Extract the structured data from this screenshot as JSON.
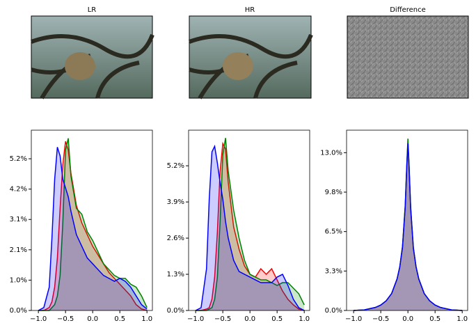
{
  "panels": [
    {
      "title": "LR"
    },
    {
      "title": "HR"
    },
    {
      "title": "Difference"
    }
  ],
  "chart_data": [
    {
      "type": "line",
      "fill": true,
      "x": [
        -1.0,
        -0.9,
        -0.8,
        -0.75,
        -0.7,
        -0.65,
        -0.6,
        -0.55,
        -0.5,
        -0.45,
        -0.4,
        -0.3,
        -0.2,
        -0.1,
        0,
        0.1,
        0.2,
        0.3,
        0.4,
        0.5,
        0.6,
        0.7,
        0.8,
        0.9,
        1.0
      ],
      "series": [
        {
          "color": "red",
          "values": [
            0,
            0,
            0.1,
            0.3,
            0.8,
            1.8,
            3.5,
            5.0,
            5.8,
            5.5,
            4.7,
            3.6,
            3.0,
            2.6,
            2.2,
            1.9,
            1.6,
            1.3,
            1.1,
            0.9,
            0.7,
            0.5,
            0.2,
            0.05,
            0
          ]
        },
        {
          "color": "green",
          "values": [
            0,
            0,
            0,
            0.1,
            0.2,
            0.5,
            1.2,
            3.0,
            5.5,
            5.9,
            4.6,
            3.5,
            3.3,
            2.7,
            2.4,
            2.0,
            1.6,
            1.4,
            1.2,
            1.1,
            1.1,
            0.9,
            0.8,
            0.5,
            0.1
          ]
        },
        {
          "color": "blue",
          "values": [
            0,
            0.1,
            0.8,
            2.5,
            4.5,
            5.6,
            5.3,
            4.5,
            4.2,
            3.9,
            3.4,
            2.6,
            2.2,
            1.8,
            1.6,
            1.4,
            1.2,
            1.1,
            1.0,
            1.1,
            1.0,
            0.8,
            0.5,
            0.2,
            0.05
          ]
        }
      ],
      "xlim": [
        -1.13,
        1.1
      ],
      "ylim": [
        0,
        6.18
      ],
      "xticks": [
        {
          "value": -1.0,
          "label": "−1.0"
        },
        {
          "value": -0.5,
          "label": "−0.5"
        },
        {
          "value": 0,
          "label": "0.0"
        },
        {
          "value": 0.5,
          "label": "0.5"
        },
        {
          "value": 1.0,
          "label": "1.0"
        }
      ],
      "yticks": [
        {
          "value": 0,
          "label": "0.0%"
        },
        {
          "value": 1.04,
          "label": "1.0%"
        },
        {
          "value": 2.08,
          "label": "2.1%"
        },
        {
          "value": 3.12,
          "label": "3.1%"
        },
        {
          "value": 4.16,
          "label": "4.2%"
        },
        {
          "value": 5.2,
          "label": "5.2%"
        }
      ]
    },
    {
      "type": "line",
      "fill": true,
      "x": [
        -1.0,
        -0.9,
        -0.8,
        -0.75,
        -0.7,
        -0.65,
        -0.6,
        -0.55,
        -0.5,
        -0.45,
        -0.4,
        -0.3,
        -0.2,
        -0.1,
        0,
        0.1,
        0.2,
        0.3,
        0.4,
        0.5,
        0.6,
        0.7,
        0.8,
        0.9,
        1.0
      ],
      "series": [
        {
          "color": "red",
          "values": [
            0,
            0,
            0.05,
            0.1,
            0.4,
            1.2,
            2.8,
            5.0,
            6.0,
            5.8,
            4.6,
            3.0,
            2.2,
            1.6,
            1.3,
            1.2,
            1.5,
            1.3,
            1.5,
            1.1,
            0.7,
            0.4,
            0.2,
            0.05,
            0
          ]
        },
        {
          "color": "green",
          "values": [
            0,
            0,
            0,
            0.05,
            0.1,
            0.4,
            1.2,
            3.2,
            5.6,
            6.2,
            5.0,
            3.6,
            2.6,
            1.8,
            1.3,
            1.2,
            1.1,
            1.1,
            1.0,
            0.9,
            1.0,
            1.0,
            0.8,
            0.6,
            0.2
          ]
        },
        {
          "color": "blue",
          "values": [
            0,
            0.1,
            1.5,
            4.0,
            5.7,
            5.9,
            5.3,
            4.6,
            4.0,
            3.2,
            2.6,
            1.8,
            1.4,
            1.3,
            1.2,
            1.1,
            1.0,
            1.0,
            1.0,
            1.2,
            1.3,
            0.9,
            0.4,
            0.1,
            0
          ]
        }
      ],
      "xlim": [
        -1.13,
        1.1
      ],
      "ylim": [
        0,
        6.48
      ],
      "xticks": [
        {
          "value": -1.0,
          "label": "−1.0"
        },
        {
          "value": -0.5,
          "label": "−0.5"
        },
        {
          "value": 0,
          "label": "0.0"
        },
        {
          "value": 0.5,
          "label": "0.5"
        },
        {
          "value": 1.0,
          "label": "1.0"
        }
      ],
      "yticks": [
        {
          "value": 0,
          "label": "0.0%"
        },
        {
          "value": 1.3,
          "label": "1.3%"
        },
        {
          "value": 2.6,
          "label": "2.6%"
        },
        {
          "value": 3.9,
          "label": "3.9%"
        },
        {
          "value": 5.2,
          "label": "5.2%"
        }
      ]
    },
    {
      "type": "line",
      "fill": true,
      "x": [
        -1.0,
        -0.8,
        -0.6,
        -0.5,
        -0.4,
        -0.3,
        -0.2,
        -0.15,
        -0.1,
        -0.05,
        -0.02,
        0,
        0.02,
        0.05,
        0.1,
        0.15,
        0.2,
        0.3,
        0.4,
        0.5,
        0.6,
        0.8,
        1.0
      ],
      "series": [
        {
          "color": "red",
          "values": [
            0,
            0.05,
            0.25,
            0.45,
            0.8,
            1.4,
            2.6,
            3.6,
            5.3,
            8.6,
            12.0,
            14.0,
            12.0,
            8.4,
            5.1,
            3.6,
            2.6,
            1.4,
            0.8,
            0.45,
            0.25,
            0.05,
            0
          ]
        },
        {
          "color": "green",
          "values": [
            0,
            0.05,
            0.25,
            0.45,
            0.8,
            1.4,
            2.6,
            3.6,
            5.3,
            8.7,
            12.2,
            14.2,
            12.2,
            8.6,
            5.2,
            3.6,
            2.6,
            1.4,
            0.8,
            0.45,
            0.25,
            0.05,
            0
          ]
        },
        {
          "color": "blue",
          "values": [
            0,
            0.05,
            0.25,
            0.45,
            0.8,
            1.4,
            2.6,
            3.6,
            5.2,
            8.5,
            12.0,
            13.8,
            12.0,
            8.5,
            5.2,
            3.6,
            2.6,
            1.4,
            0.8,
            0.45,
            0.25,
            0.05,
            0
          ]
        }
      ],
      "xlim": [
        -1.13,
        1.1
      ],
      "ylim": [
        0,
        14.9
      ],
      "xticks": [
        {
          "value": -1.0,
          "label": "−1.0"
        },
        {
          "value": -0.5,
          "label": "−0.5"
        },
        {
          "value": 0,
          "label": "0.0"
        },
        {
          "value": 0.5,
          "label": "0.5"
        },
        {
          "value": 1.0,
          "label": "1.0"
        }
      ],
      "yticks": [
        {
          "value": 0,
          "label": "0.0%"
        },
        {
          "value": 3.26,
          "label": "3.3%"
        },
        {
          "value": 6.52,
          "label": "6.5%"
        },
        {
          "value": 9.78,
          "label": "9.8%"
        },
        {
          "value": 13.04,
          "label": "13.0%"
        }
      ]
    }
  ]
}
